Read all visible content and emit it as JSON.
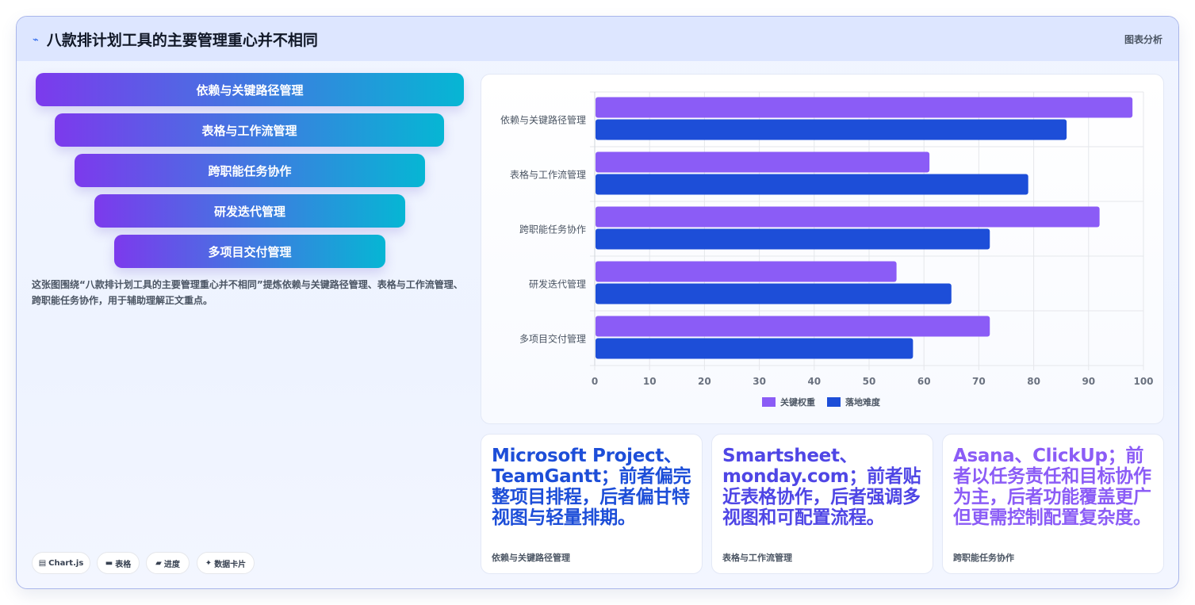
{
  "header": {
    "icon": "sparkline-icon",
    "title": "八款排计划工具的主要管理重心并不相同",
    "badge": "图表分析"
  },
  "funnel": {
    "items": [
      "依赖与关键路径管理",
      "表格与工作流管理",
      "跨职能任务协作",
      "研发迭代管理",
      "多项目交付管理"
    ]
  },
  "description": "这张图围绕“八款排计划工具的主要管理重心并不相同”提炼依赖与关键路径管理、表格与工作流管理、跨职能任务协作，用于辅助理解正文重点。",
  "chips": [
    {
      "icon": "chart-icon",
      "glyph": "▤",
      "label": "Chart.js"
    },
    {
      "icon": "table-icon",
      "glyph": "▬",
      "label": "表格"
    },
    {
      "icon": "progress-icon",
      "glyph": "▰",
      "label": "进度"
    },
    {
      "icon": "card-icon",
      "glyph": "✦",
      "label": "数据卡片"
    }
  ],
  "cards": [
    {
      "text": "Microsoft Project、TeamGantt；前者偏完整项目排程，后者偏甘特视图与轻量排期。",
      "caption": "依赖与关键路径管理",
      "color": "#1d4ed8"
    },
    {
      "text": "Smartsheet、monday.com；前者贴近表格协作，后者强调多视图和可配置流程。",
      "caption": "表格与工作流管理",
      "color": "#4f46e5"
    },
    {
      "text": "Asana、ClickUp；前者以任务责任和目标协作为主，后者功能覆盖更广但更需控制配置复杂度。",
      "caption": "跨职能任务协作",
      "color": "#8b5cf6"
    }
  ],
  "chart_data": {
    "type": "bar",
    "orientation": "horizontal",
    "categories": [
      "依赖与关键路径管理",
      "表格与工作流管理",
      "跨职能任务协作",
      "研发迭代管理",
      "多项目交付管理"
    ],
    "series": [
      {
        "name": "关键权重",
        "values": [
          98,
          61,
          92,
          55,
          72
        ],
        "color": "#8b5cf6"
      },
      {
        "name": "落地难度",
        "values": [
          86,
          79,
          72,
          65,
          58
        ],
        "color": "#1d4ed8"
      }
    ],
    "xlim": [
      0,
      100
    ],
    "xticks": [
      "0",
      "10",
      "20",
      "30",
      "40",
      "50",
      "60",
      "70",
      "80",
      "90",
      "100"
    ],
    "grid": true,
    "legend": "bottom"
  }
}
